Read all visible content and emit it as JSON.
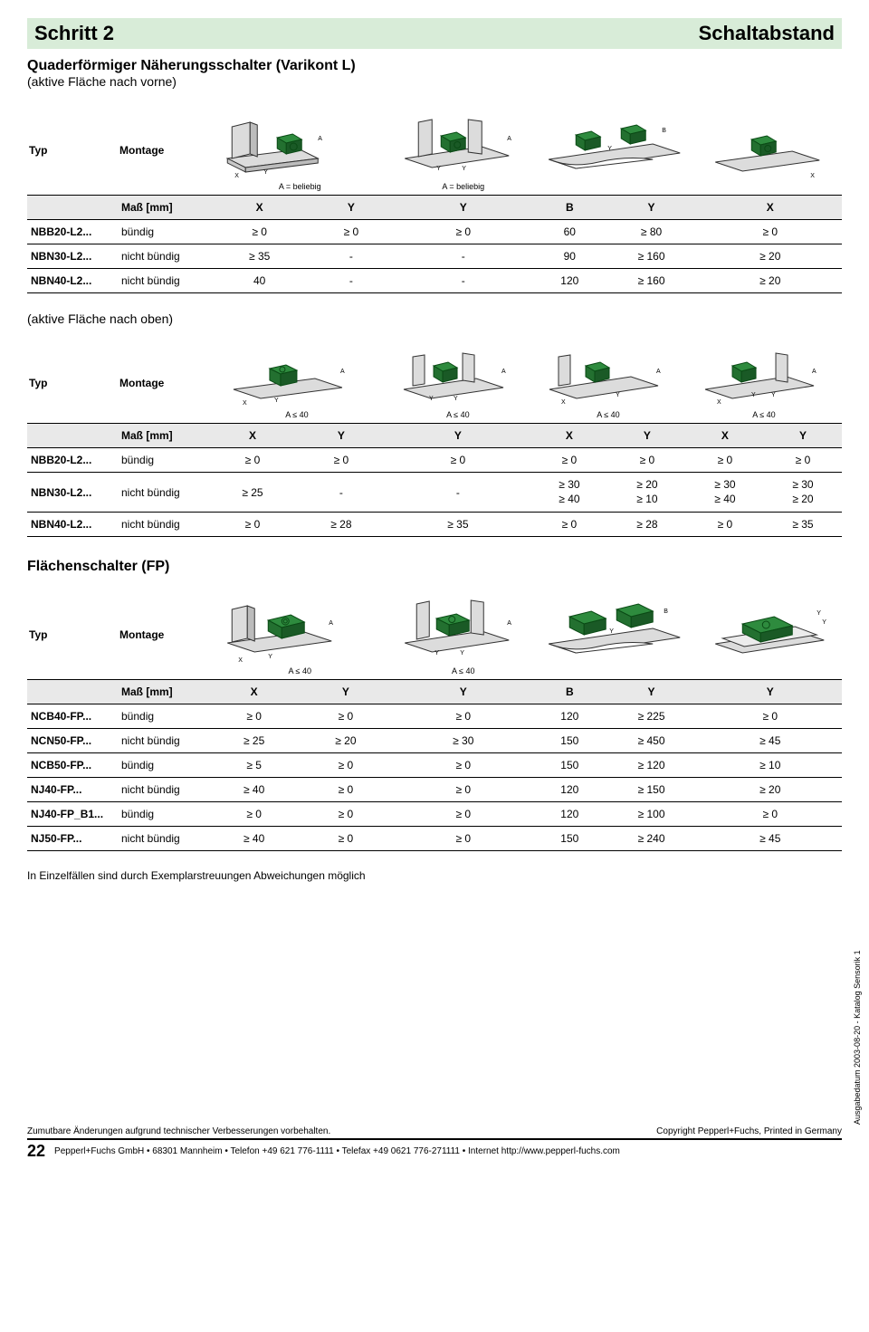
{
  "header": {
    "step": "Schritt 2",
    "title": "Schaltabstand"
  },
  "section1": {
    "title": "Quaderförmiger Näherungsschalter (Varikont L)",
    "subtitle": "(aktive Fläche nach vorne)",
    "header_labels": {
      "typ": "Typ",
      "montage": "Montage",
      "mass": "Maß [mm]"
    },
    "captions": {
      "c1": "A = beliebig",
      "c2": "A = beliebig"
    },
    "columns": [
      "X",
      "Y",
      "Y",
      "B",
      "Y",
      "X"
    ],
    "rows": [
      {
        "typ": "NBB20-L2...",
        "montage": "bündig",
        "vals": [
          "≥ 0",
          "≥ 0",
          "≥ 0",
          "60",
          "≥ 80",
          "≥ 0"
        ]
      },
      {
        "typ": "NBN30-L2...",
        "montage": "nicht bündig",
        "vals": [
          "≥ 35",
          "-",
          "-",
          "90",
          "≥ 160",
          "≥ 20"
        ]
      },
      {
        "typ": "NBN40-L2...",
        "montage": "nicht bündig",
        "vals": [
          "40",
          "-",
          "-",
          "120",
          "≥ 160",
          "≥ 20"
        ]
      }
    ]
  },
  "section2": {
    "subtitle": "(aktive Fläche nach oben)",
    "header_labels": {
      "typ": "Typ",
      "montage": "Montage",
      "mass": "Maß [mm]"
    },
    "captions": {
      "c1": "A ≤ 40",
      "c2": "A ≤ 40",
      "c3": "A ≤ 40",
      "c4": "A ≤ 40"
    },
    "columns": [
      "X",
      "Y",
      "Y",
      "X",
      "Y",
      "X",
      "Y"
    ],
    "rows": [
      {
        "typ": "NBB20-L2...",
        "montage": "bündig",
        "vals": [
          "≥ 0",
          "≥ 0",
          "≥ 0",
          "≥ 0",
          "≥ 0",
          "≥ 0",
          "≥ 0"
        ]
      },
      {
        "typ": "NBN30-L2...",
        "montage": "nicht bündig",
        "vals": [
          "≥ 25",
          "-",
          "-",
          "≥ 30\n≥ 40",
          "≥ 20\n≥ 10",
          "≥ 30\n≥ 40",
          "≥ 30\n≥ 20"
        ]
      },
      {
        "typ": "NBN40-L2...",
        "montage": "nicht bündig",
        "vals": [
          "≥ 0",
          "≥ 28",
          "≥ 35",
          "≥ 0",
          "≥ 28",
          "≥ 0",
          "≥ 35"
        ]
      }
    ]
  },
  "section3": {
    "title": "Flächenschalter (FP)",
    "header_labels": {
      "typ": "Typ",
      "montage": "Montage",
      "mass": "Maß [mm]"
    },
    "captions": {
      "c1": "A ≤ 40",
      "c2": "A ≤ 40"
    },
    "columns": [
      "X",
      "Y",
      "Y",
      "B",
      "Y",
      "Y"
    ],
    "rows": [
      {
        "typ": "NCB40-FP...",
        "montage": "bündig",
        "vals": [
          "≥ 0",
          "≥ 0",
          "≥ 0",
          "120",
          "≥ 225",
          "≥ 0"
        ]
      },
      {
        "typ": "NCN50-FP...",
        "montage": "nicht bündig",
        "vals": [
          "≥ 25",
          "≥ 20",
          "≥ 30",
          "150",
          "≥ 450",
          "≥ 45"
        ]
      },
      {
        "typ": "NCB50-FP...",
        "montage": "bündig",
        "vals": [
          "≥ 5",
          "≥ 0",
          "≥ 0",
          "150",
          "≥ 120",
          "≥ 10"
        ]
      },
      {
        "typ": "NJ40-FP...",
        "montage": "nicht bündig",
        "vals": [
          "≥ 40",
          "≥ 0",
          "≥ 0",
          "120",
          "≥ 150",
          "≥ 20"
        ]
      },
      {
        "typ": "NJ40-FP_B1...",
        "montage": "bündig",
        "vals": [
          "≥ 0",
          "≥ 0",
          "≥ 0",
          "120",
          "≥ 100",
          "≥ 0"
        ]
      },
      {
        "typ": "NJ50-FP...",
        "montage": "nicht bündig",
        "vals": [
          "≥ 40",
          "≥ 0",
          "≥ 0",
          "150",
          "≥ 240",
          "≥ 45"
        ]
      }
    ]
  },
  "note": "In Einzelfällen sind durch Exemplarstreuungen Abweichungen möglich",
  "footer": {
    "top_left": "Zumutbare Änderungen aufgrund technischer Verbesserungen vorbehalten.",
    "top_right": "Copyright Pepperl+Fuchs, Printed in Germany",
    "page_num": "22",
    "bottom": "Pepperl+Fuchs GmbH • 68301 Mannheim • Telefon +49 621 776-1111 • Telefax +49 0621 776-271111 • Internet http://www.pepperl-fuchs.com"
  },
  "side_text": "Ausgabedatum 2003-08-20 - Katalog Sensorik 1",
  "colors": {
    "sensor_fill": "#2e8b3e",
    "sensor_stroke": "#0a4a15",
    "plate_fill": "#dcdcdc",
    "plate_stroke": "#333333",
    "header_bg": "#d8ecd8",
    "row_header_bg": "#e9e9e9"
  }
}
